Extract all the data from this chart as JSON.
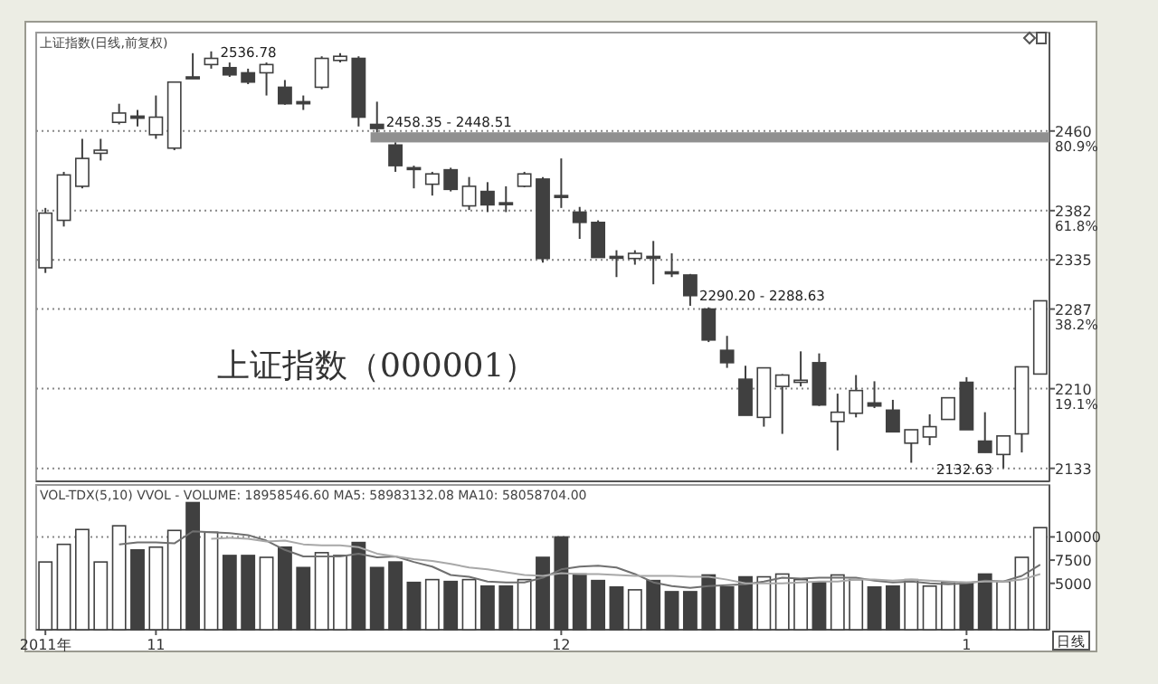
{
  "chart_data": [
    {
      "type": "candlestick",
      "title": "上证指数(日线,前复权)",
      "categories": [
        null,
        null,
        null,
        null,
        null,
        null,
        null,
        null,
        null,
        null,
        null,
        null,
        null,
        null,
        null,
        null,
        null,
        null,
        null,
        null,
        null,
        null,
        null,
        null,
        null,
        null,
        null,
        null,
        null,
        null,
        null,
        null,
        null,
        null,
        null,
        null,
        null,
        null,
        null,
        null,
        null,
        null,
        null,
        null,
        null,
        null,
        null,
        null,
        null,
        null,
        null,
        null,
        null,
        null,
        null
      ],
      "ohlc": [
        [
          2327,
          2385,
          2322,
          2380
        ],
        [
          2373,
          2420,
          2367,
          2417
        ],
        [
          2406,
          2452,
          2404,
          2433
        ],
        [
          2438,
          2452,
          2431,
          2441
        ],
        [
          2468,
          2486,
          2466,
          2477
        ],
        [
          2474,
          2480,
          2464,
          2472
        ],
        [
          2456,
          2494,
          2452,
          2473
        ],
        [
          2443,
          2507,
          2441,
          2507
        ],
        [
          2512,
          2535,
          2511,
          2511
        ],
        [
          2524,
          2536.78,
          2520,
          2530
        ],
        [
          2521,
          2526,
          2512,
          2514
        ],
        [
          2516,
          2520,
          2505,
          2507
        ],
        [
          2516,
          2526,
          2494,
          2524
        ],
        [
          2502,
          2509,
          2485,
          2486
        ],
        [
          2488,
          2494,
          2480,
          2486
        ],
        [
          2502,
          2532,
          2500,
          2530
        ],
        [
          2528,
          2535,
          2526,
          2532
        ],
        [
          2530,
          2532,
          2464,
          2473
        ],
        [
          2466,
          2488,
          2458.35,
          2462
        ],
        [
          2446,
          2448.51,
          2420,
          2426
        ],
        [
          2424,
          2426,
          2404,
          2423
        ],
        [
          2408,
          2420,
          2397,
          2418
        ],
        [
          2422,
          2424,
          2401,
          2403
        ],
        [
          2387,
          2415,
          2383,
          2406
        ],
        [
          2401,
          2410,
          2381,
          2388
        ],
        [
          2390,
          2406,
          2381,
          2389
        ],
        [
          2406,
          2420,
          2405,
          2418
        ],
        [
          2413,
          2415,
          2332,
          2336
        ],
        [
          2397,
          2433,
          2385,
          2396
        ],
        [
          2381,
          2386,
          2355,
          2371
        ],
        [
          2371,
          2373,
          2337,
          2337
        ],
        [
          2338,
          2344,
          2318,
          2337
        ],
        [
          2336,
          2344,
          2330,
          2341
        ],
        [
          2338,
          2353,
          2311,
          2337
        ],
        [
          2323,
          2341,
          2318,
          2322
        ],
        [
          2320,
          2321,
          2290.2,
          2300
        ],
        [
          2287,
          2288.63,
          2255,
          2257
        ],
        [
          2247,
          2261,
          2230,
          2235
        ],
        [
          2219,
          2232,
          2184,
          2184
        ],
        [
          2182,
          2230,
          2173,
          2230
        ],
        [
          2212,
          2224,
          2166,
          2223
        ],
        [
          2216,
          2246,
          2212,
          2218
        ],
        [
          2235,
          2244,
          2193,
          2194
        ],
        [
          2178,
          2205,
          2150,
          2187
        ],
        [
          2186,
          2223,
          2182,
          2208
        ],
        [
          2196,
          2217,
          2191,
          2193
        ],
        [
          2189,
          2199,
          2168,
          2168
        ],
        [
          2157,
          2170,
          2138,
          2170
        ],
        [
          2163,
          2185,
          2155,
          2173
        ],
        [
          2180,
          2201,
          2180,
          2201
        ],
        [
          2216,
          2221,
          2170,
          2170
        ],
        [
          2159,
          2187,
          2148,
          2148
        ],
        [
          2146,
          2164,
          2132.63,
          2164
        ],
        [
          2166,
          2231,
          2148,
          2231
        ],
        [
          2224,
          2295,
          2224,
          2295
        ]
      ],
      "colors": [
        "#ffffff",
        "#ffffff",
        "#ffffff",
        "#ffffff",
        "#ffffff",
        "#404040",
        "#ffffff",
        "#ffffff",
        "#404040",
        "#ffffff",
        "#404040",
        "#404040",
        "#ffffff",
        "#404040",
        "#404040",
        "#ffffff",
        "#ffffff",
        "#404040",
        "#404040",
        "#404040",
        "#404040",
        "#ffffff",
        "#404040",
        "#ffffff",
        "#404040",
        "#404040",
        "#ffffff",
        "#404040",
        "#404040",
        "#404040",
        "#404040",
        "#404040",
        "#ffffff",
        "#404040",
        "#404040",
        "#404040",
        "#404040",
        "#404040",
        "#404040",
        "#ffffff",
        "#ffffff",
        "#ffffff",
        "#404040",
        "#ffffff",
        "#ffffff",
        "#404040",
        "#404040",
        "#ffffff",
        "#ffffff",
        "#ffffff",
        "#404040",
        "#404040",
        "#ffffff",
        "#ffffff",
        "#ffffff"
      ],
      "ylim": [
        2120,
        2555
      ],
      "yticks": [
        {
          "value": 2459.6,
          "label": "2460"
        },
        {
          "value": 2382.4,
          "label": "2382"
        },
        {
          "value": 2334.7,
          "label": "2335"
        },
        {
          "value": 2287,
          "label": "2287"
        },
        {
          "value": 2209.8,
          "label": "2210"
        },
        {
          "value": 2132.6,
          "label": "2133"
        }
      ],
      "y2lim": [
        -3.1,
        104.5
      ],
      "y2ticks": [
        {
          "value": 80.9,
          "label": "80.9%"
        },
        {
          "value": 61.8,
          "label": "61.8%"
        },
        {
          "value": 38.2,
          "label": "38.2%"
        },
        {
          "value": 19.1,
          "label": "19.1%"
        }
      ],
      "grid": "y",
      "bands": [
        {
          "axis": "y",
          "from": 2448.51,
          "to": 2458.35,
          "color": "#909090"
        }
      ],
      "annotations": [
        "上证指数（000001）",
        "2536.78",
        {
          "text": "2458.35 - 2448.51",
          "y": 2458.35
        },
        "2290.20 - 2288.63",
        "2132.63"
      ]
    },
    {
      "type": "bar",
      "title": "VOL-TDX(5,10) VVOL - VOLUME: 18958546.60 MA5: 58983132.08 MA10: 58058704.00",
      "categories": [
        "2011年",
        null,
        null,
        null,
        null,
        null,
        "11",
        null,
        null,
        null,
        null,
        null,
        null,
        null,
        null,
        null,
        null,
        null,
        null,
        null,
        null,
        null,
        null,
        null,
        null,
        null,
        null,
        null,
        "12",
        null,
        null,
        null,
        null,
        null,
        null,
        null,
        null,
        null,
        null,
        null,
        null,
        null,
        null,
        null,
        null,
        null,
        null,
        null,
        null,
        null,
        "1",
        null,
        null,
        null,
        null
      ],
      "series": [
        {
          "type": "bar",
          "values": [
            7300,
            9200,
            10800,
            7300,
            11200,
            8600,
            8900,
            10700,
            13700,
            10500,
            8000,
            8000,
            7800,
            8900,
            6700,
            8300,
            8000,
            9400,
            6700,
            7300,
            5100,
            5400,
            5200,
            5400,
            4700,
            4700,
            5400,
            7800,
            10000,
            6000,
            5300,
            4600,
            4300,
            5300,
            4100,
            4100,
            5900,
            4600,
            5700,
            5700,
            6000,
            5400,
            5100,
            5900,
            5400,
            4600,
            4700,
            5400,
            4700,
            5100,
            5100,
            6000,
            5200,
            7800,
            11000
          ],
          "colors": [
            "#ffffff",
            "#ffffff",
            "#ffffff",
            "#ffffff",
            "#ffffff",
            "#404040",
            "#ffffff",
            "#ffffff",
            "#404040",
            "#ffffff",
            "#404040",
            "#404040",
            "#ffffff",
            "#404040",
            "#404040",
            "#ffffff",
            "#ffffff",
            "#404040",
            "#404040",
            "#404040",
            "#404040",
            "#ffffff",
            "#404040",
            "#ffffff",
            "#404040",
            "#404040",
            "#ffffff",
            "#404040",
            "#404040",
            "#404040",
            "#404040",
            "#404040",
            "#ffffff",
            "#404040",
            "#404040",
            "#404040",
            "#404040",
            "#404040",
            "#404040",
            "#ffffff",
            "#ffffff",
            "#ffffff",
            "#404040",
            "#ffffff",
            "#ffffff",
            "#404040",
            "#404040",
            "#ffffff",
            "#ffffff",
            "#ffffff",
            "#404040",
            "#404040",
            "#ffffff",
            "#ffffff",
            "#ffffff"
          ]
        },
        {
          "type": "line",
          "color": "#707070",
          "values": [
            null,
            null,
            null,
            null,
            9200,
            9400,
            9400,
            9300,
            10600,
            10500,
            10400,
            10200,
            9600,
            8600,
            7900,
            7900,
            7900,
            8200,
            7800,
            7900,
            7300,
            6800,
            5900,
            5700,
            5200,
            5100,
            5100,
            5600,
            6500,
            6800,
            6900,
            6700,
            6000,
            5100,
            4700,
            4500,
            4700,
            4800,
            4900,
            5200,
            5600,
            5500,
            5600,
            5600,
            5600,
            5300,
            5100,
            5200,
            5000,
            4900,
            5000,
            5300,
            5200,
            5800,
            7000
          ]
        },
        {
          "type": "line",
          "color": "#a8a8a8",
          "values": [
            null,
            null,
            null,
            null,
            null,
            null,
            null,
            null,
            null,
            9800,
            9900,
            9800,
            9500,
            9600,
            9200,
            9100,
            9100,
            8900,
            8200,
            7900,
            7600,
            7400,
            7100,
            6700,
            6500,
            6200,
            5900,
            5800,
            6100,
            6000,
            6000,
            5900,
            5800,
            5800,
            5800,
            5700,
            5700,
            5400,
            5000,
            5000,
            5000,
            5100,
            5200,
            5200,
            5400,
            5400,
            5300,
            5400,
            5300,
            5200,
            5100,
            5200,
            5200,
            5400,
            6000
          ]
        }
      ],
      "ylim": [
        0,
        15600
      ],
      "yticks": [
        {
          "value": 10000,
          "label": "10000"
        },
        {
          "value": 7500,
          "label": "7500"
        },
        {
          "value": 5000,
          "label": "5000"
        }
      ],
      "ref_lines": [
        {
          "axis": "y",
          "value": 10000
        }
      ],
      "annotations": [
        "日线"
      ]
    }
  ]
}
